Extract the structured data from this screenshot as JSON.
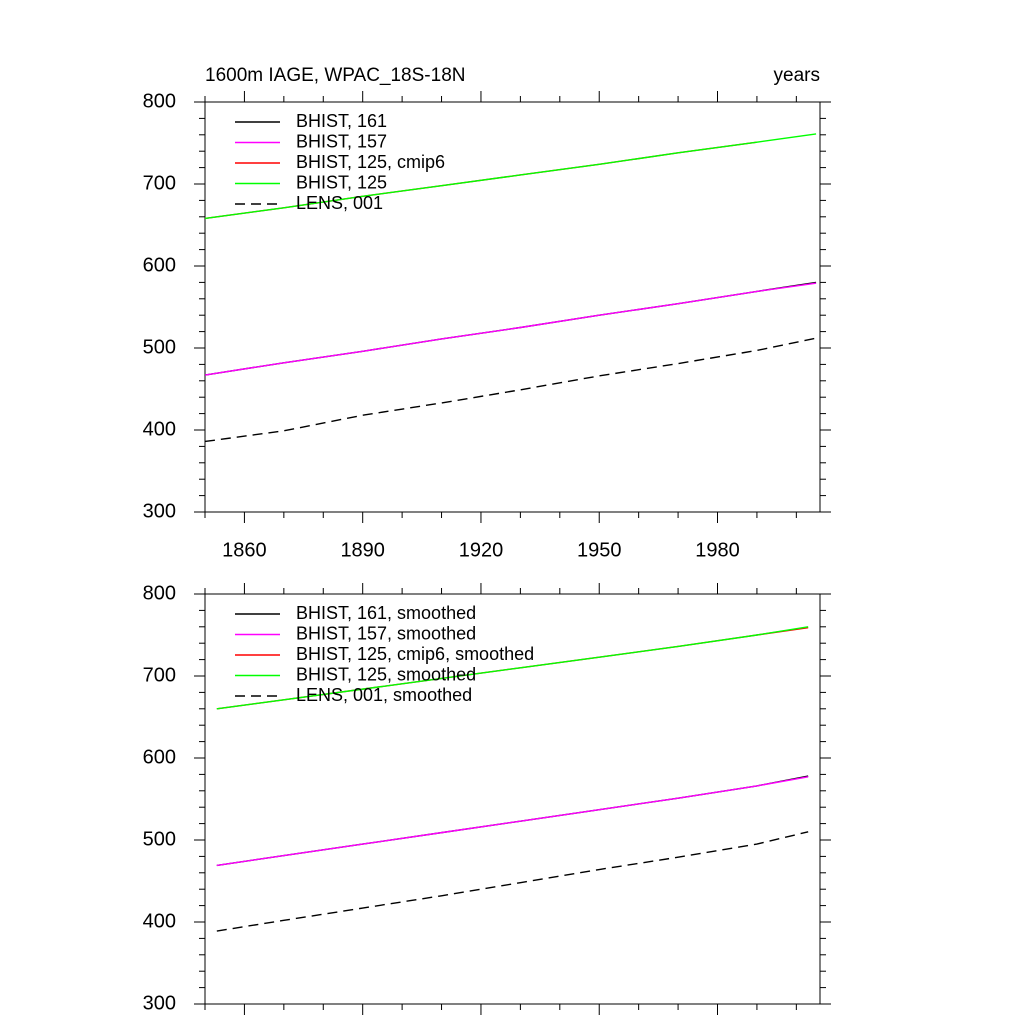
{
  "chart_data": [
    {
      "type": "line",
      "title": "1600m IAGE, WPAC_18S-18N",
      "right_title": "years",
      "x": [
        1850,
        1870,
        1890,
        1910,
        1930,
        1950,
        1970,
        1990,
        2005
      ],
      "xlim": [
        1850,
        2006
      ],
      "xticks": [
        1860,
        1890,
        1920,
        1950,
        1980
      ],
      "xticklabels": true,
      "xminorticks": [
        1850,
        1870,
        1880,
        1900,
        1910,
        1930,
        1940,
        1960,
        1970,
        1990,
        2000
      ],
      "ylim": [
        300,
        800
      ],
      "yticks": [
        300,
        400,
        500,
        600,
        700,
        800
      ],
      "yminorticks": [
        320,
        340,
        360,
        380,
        420,
        440,
        460,
        480,
        520,
        540,
        560,
        580,
        620,
        640,
        660,
        680,
        720,
        740,
        760,
        780
      ],
      "series": [
        {
          "name": "BHIST, 161",
          "color": "#000000",
          "dash": false,
          "values": [
            467,
            482,
            496,
            511,
            525,
            540,
            554,
            569,
            580
          ]
        },
        {
          "name": "BHIST, 157",
          "color": "#ff00ff",
          "dash": false,
          "values": [
            467,
            482,
            496,
            511,
            525,
            540,
            554,
            569,
            579
          ]
        },
        {
          "name": "BHIST, 125, cmip6",
          "color": "#ff0000",
          "dash": false,
          "values": [
            658,
            671,
            685,
            698,
            711,
            724,
            738,
            751,
            null
          ]
        },
        {
          "name": "BHIST, 125",
          "color": "#00ff00",
          "dash": false,
          "values": [
            658,
            671,
            685,
            698,
            711,
            724,
            738,
            751,
            761
          ]
        },
        {
          "name": "LENS, 001",
          "color": "#000000",
          "dash": true,
          "values": [
            386,
            399,
            418,
            433,
            449,
            466,
            481,
            497,
            512
          ]
        }
      ]
    },
    {
      "type": "line",
      "x": [
        1853,
        1870,
        1890,
        1910,
        1930,
        1950,
        1970,
        1990,
        2003
      ],
      "xlim": [
        1850,
        2006
      ],
      "xticks": [
        1860,
        1890,
        1920,
        1950,
        1980
      ],
      "xticklabels": false,
      "xminorticks": [
        1850,
        1870,
        1880,
        1900,
        1910,
        1930,
        1940,
        1960,
        1970,
        1990,
        2000
      ],
      "ylim": [
        300,
        800
      ],
      "yticks": [
        300,
        400,
        500,
        600,
        700,
        800
      ],
      "yminorticks": [
        320,
        340,
        360,
        380,
        420,
        440,
        460,
        480,
        520,
        540,
        560,
        580,
        620,
        640,
        660,
        680,
        720,
        740,
        760,
        780
      ],
      "series": [
        {
          "name": "BHIST, 161, smoothed",
          "color": "#000000",
          "dash": false,
          "values": [
            469,
            481,
            495,
            509,
            523,
            537,
            551,
            566,
            578
          ]
        },
        {
          "name": "BHIST, 157, smoothed",
          "color": "#ff00ff",
          "dash": false,
          "values": [
            469,
            481,
            495,
            509,
            523,
            537,
            551,
            566,
            577
          ]
        },
        {
          "name": "BHIST, 125, cmip6, smoothed",
          "color": "#ff0000",
          "dash": false,
          "values": [
            660,
            671,
            684,
            697,
            710,
            723,
            736,
            750,
            759
          ]
        },
        {
          "name": "BHIST, 125, smoothed",
          "color": "#00ff00",
          "dash": false,
          "values": [
            660,
            671,
            684,
            697,
            710,
            723,
            736,
            750,
            760
          ]
        },
        {
          "name": "LENS, 001, smoothed",
          "color": "#000000",
          "dash": true,
          "values": [
            389,
            402,
            417,
            432,
            448,
            464,
            479,
            495,
            510
          ]
        }
      ]
    }
  ]
}
